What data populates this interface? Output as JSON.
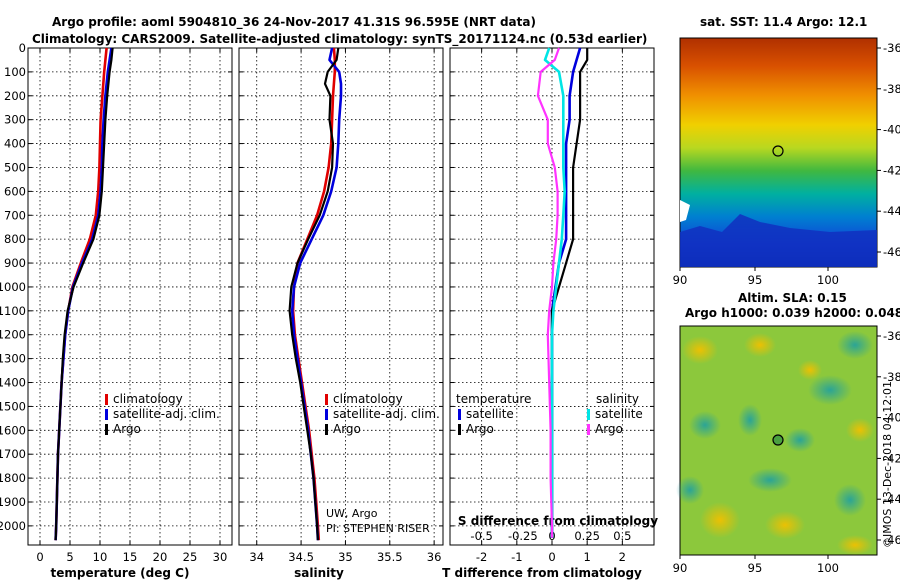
{
  "header": {
    "title_line1": "Argo profile: aoml 5904810_36 24-Nov-2017 41.31S 96.595E (NRT data)",
    "title_line2": "Climatology: CARS2009. Satellite-adjusted climatology: synTS_20171124.nc (0.53d earlier)"
  },
  "colors": {
    "climatology": "#e00000",
    "satellite": "#0000dd",
    "argo": "#000000",
    "salinity_sat": "#00e5e5",
    "salinity_argo": "#ff33ff"
  },
  "depth_axis": {
    "ticks": [
      "0",
      "100",
      "200",
      "300",
      "400",
      "500",
      "600",
      "700",
      "800",
      "900",
      "1000",
      "1100",
      "1200",
      "1300",
      "1400",
      "1500",
      "1600",
      "1700",
      "1800",
      "1900",
      "2000"
    ],
    "range": [
      0,
      2080
    ]
  },
  "legend": {
    "climatology": "climatology",
    "satellite_adj": "satellite-adj. clim.",
    "argo": "Argo"
  },
  "diff_legend": {
    "temperature_heading": "temperature",
    "salinity_heading": "salinity",
    "satellite": "satellite",
    "argo": "Argo"
  },
  "credits": {
    "line1": "UW, Argo",
    "line2": "PI: STEPHEN RISER"
  },
  "map_top": {
    "title": "sat. SST: 11.4 Argo: 12.1",
    "lat_ticks": [
      "-36",
      "-38",
      "-40",
      "-42",
      "-44",
      "-46"
    ],
    "lon_ticks": [
      "90",
      "95",
      "100"
    ]
  },
  "map_bottom": {
    "title_line1": "Altim. SLA: 0.15",
    "title_line2": "Argo h1000: 0.039 h2000: 0.048",
    "lat_ticks": [
      "-36",
      "-38",
      "-40",
      "-42",
      "-44",
      "-46"
    ],
    "lon_ticks": [
      "90",
      "95",
      "100"
    ]
  },
  "watermark": "©IMOS 13-Dec-2018 04:12:01",
  "chart_data": [
    {
      "type": "line",
      "panel": "temperature",
      "xlabel": "temperature (deg C)",
      "ylabel": "depth",
      "xlim": [
        -2,
        32
      ],
      "ylim": [
        2080,
        0
      ],
      "x_ticks": [
        "0",
        "5",
        "10",
        "15",
        "20",
        "25",
        "30"
      ],
      "depth": [
        0,
        50,
        100,
        200,
        300,
        400,
        500,
        600,
        700,
        800,
        900,
        1000,
        1100,
        1200,
        1300,
        1400,
        1500,
        1600,
        1700,
        1800,
        1900,
        2000,
        2060
      ],
      "series": [
        {
          "name": "climatology",
          "values": [
            11.1,
            10.9,
            10.7,
            10.4,
            10.1,
            10.0,
            9.9,
            9.7,
            9.3,
            8.3,
            6.8,
            5.4,
            4.7,
            4.2,
            3.9,
            3.6,
            3.4,
            3.2,
            3.0,
            2.9,
            2.8,
            2.7,
            2.6
          ]
        },
        {
          "name": "satellite-adj. clim.",
          "values": [
            11.9,
            11.6,
            11.3,
            10.9,
            10.6,
            10.4,
            10.3,
            10.1,
            9.7,
            8.7,
            7.0,
            5.5,
            4.7,
            4.2,
            3.9,
            3.6,
            3.4,
            3.2,
            3.0,
            2.9,
            2.8,
            2.7,
            2.6
          ]
        },
        {
          "name": "Argo",
          "values": [
            12.1,
            11.9,
            11.6,
            11.2,
            10.9,
            10.7,
            10.5,
            10.3,
            9.9,
            8.9,
            7.2,
            5.6,
            4.6,
            4.1,
            3.8,
            3.6,
            3.4,
            3.2,
            3.0,
            2.9,
            2.8,
            2.7,
            2.6
          ]
        }
      ]
    },
    {
      "type": "line",
      "panel": "salinity",
      "xlabel": "salinity",
      "xlim": [
        33.8,
        36.1
      ],
      "ylim": [
        2080,
        0
      ],
      "x_ticks": [
        "34",
        "34.5",
        "35",
        "35.5",
        "36"
      ],
      "depth": [
        0,
        50,
        100,
        150,
        200,
        300,
        400,
        500,
        600,
        700,
        800,
        900,
        1000,
        1100,
        1200,
        1300,
        1400,
        1500,
        1600,
        1700,
        1800,
        1900,
        2000,
        2060
      ],
      "series": [
        {
          "name": "climatology",
          "values": [
            34.87,
            34.88,
            34.88,
            34.87,
            34.86,
            34.85,
            34.84,
            34.81,
            34.76,
            34.68,
            34.57,
            34.46,
            34.42,
            34.41,
            34.43,
            34.47,
            34.51,
            34.55,
            34.59,
            34.62,
            34.65,
            34.67,
            34.69,
            34.7
          ]
        },
        {
          "name": "satellite-adj. clim.",
          "values": [
            34.85,
            34.82,
            34.93,
            34.95,
            34.95,
            34.93,
            34.92,
            34.9,
            34.84,
            34.75,
            34.62,
            34.49,
            34.42,
            34.4,
            34.42,
            34.46,
            34.5,
            34.54,
            34.58,
            34.61,
            34.64,
            34.66,
            34.68,
            34.69
          ]
        },
        {
          "name": "Argo",
          "values": [
            34.92,
            34.9,
            34.8,
            34.77,
            34.83,
            34.82,
            34.86,
            34.85,
            34.8,
            34.71,
            34.58,
            34.46,
            34.39,
            34.37,
            34.4,
            34.44,
            34.49,
            34.53,
            34.57,
            34.61,
            34.64,
            34.66,
            34.68,
            34.69
          ]
        }
      ]
    },
    {
      "type": "line",
      "panel": "difference",
      "xlabel": "T difference from climatology",
      "x2label": "S difference from climatology",
      "xlim": [
        -2.9,
        2.9
      ],
      "ylim": [
        2080,
        0
      ],
      "x_ticks": [
        "-2",
        "-1",
        "0",
        "1",
        "2"
      ],
      "x2_ticks": [
        "-0.5",
        "-0.25",
        "0",
        "0.25",
        "0.5"
      ],
      "depth": [
        0,
        50,
        100,
        200,
        300,
        400,
        500,
        600,
        700,
        800,
        900,
        1000,
        1100,
        1200,
        1400,
        1600,
        1800,
        2000,
        2050
      ],
      "series": [
        {
          "name": "temperature satellite",
          "values": [
            0.8,
            0.7,
            0.6,
            0.5,
            0.5,
            0.4,
            0.4,
            0.4,
            0.4,
            0.4,
            0.2,
            0.1,
            0.0,
            0.0,
            0.0,
            0.0,
            0.0,
            0.0,
            0.0
          ]
        },
        {
          "name": "temperature Argo",
          "values": [
            1.0,
            1.0,
            0.8,
            0.8,
            0.8,
            0.7,
            0.6,
            0.6,
            0.6,
            0.6,
            0.4,
            0.2,
            0.0,
            0.0,
            0.0,
            0.0,
            0.0,
            0.0,
            0.0
          ]
        },
        {
          "name": "salinity satellite",
          "values": [
            -0.02,
            -0.05,
            0.05,
            0.08,
            0.08,
            0.08,
            0.08,
            0.09,
            0.08,
            0.07,
            0.05,
            0.03,
            0.01,
            0.0,
            0.0,
            0.0,
            0.0,
            0.0,
            0.0
          ]
        },
        {
          "name": "salinity Argo",
          "values": [
            0.05,
            0.02,
            -0.08,
            -0.1,
            -0.03,
            -0.03,
            0.02,
            0.04,
            0.04,
            0.03,
            0.01,
            0.0,
            -0.02,
            -0.03,
            -0.02,
            -0.01,
            -0.01,
            0.0,
            0.0
          ]
        }
      ]
    }
  ]
}
